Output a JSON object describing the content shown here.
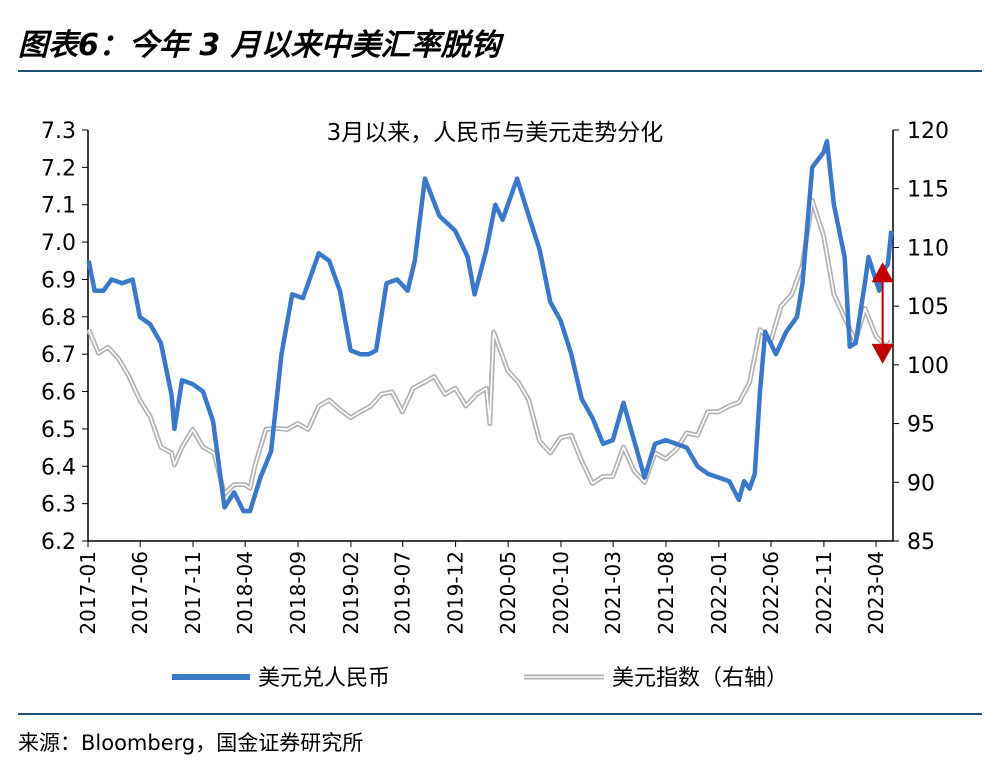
{
  "figure": {
    "title": "图表6：今年 3 月以来中美汇率脱钩",
    "source": "来源：Bloomberg，国金证券研究所"
  },
  "chart_data": {
    "type": "line",
    "title": "3月以来，人民币与美元走势分化",
    "x_tick_labels": [
      "2017-01",
      "2017-06",
      "2017-11",
      "2018-04",
      "2018-09",
      "2019-02",
      "2019-07",
      "2019-12",
      "2020-05",
      "2020-10",
      "2021-03",
      "2021-08",
      "2022-01",
      "2022-06",
      "2022-11",
      "2023-04"
    ],
    "y_left": {
      "range": [
        6.2,
        7.3
      ],
      "ticks": [
        "6.2",
        "6.3",
        "6.4",
        "6.5",
        "6.6",
        "6.7",
        "6.8",
        "6.9",
        "7.0",
        "7.1",
        "7.2",
        "7.3"
      ]
    },
    "y_right": {
      "range": [
        85,
        120
      ],
      "ticks": [
        "85",
        "90",
        "95",
        "100",
        "105",
        "110",
        "115",
        "120"
      ]
    },
    "series": [
      {
        "name": "美元兑人民币",
        "axis": "left",
        "color": "#3a78c9",
        "points": [
          [
            "2017-01-03",
            6.95
          ],
          [
            "2017-01-20",
            6.87
          ],
          [
            "2017-02-15",
            6.87
          ],
          [
            "2017-03-10",
            6.9
          ],
          [
            "2017-04-10",
            6.89
          ],
          [
            "2017-05-10",
            6.9
          ],
          [
            "2017-05-31",
            6.8
          ],
          [
            "2017-06-30",
            6.78
          ],
          [
            "2017-07-31",
            6.73
          ],
          [
            "2017-08-31",
            6.59
          ],
          [
            "2017-09-08",
            6.5
          ],
          [
            "2017-09-30",
            6.63
          ],
          [
            "2017-10-31",
            6.62
          ],
          [
            "2017-11-30",
            6.6
          ],
          [
            "2017-12-29",
            6.52
          ],
          [
            "2018-01-31",
            6.29
          ],
          [
            "2018-02-28",
            6.33
          ],
          [
            "2018-03-27",
            6.28
          ],
          [
            "2018-04-15",
            6.28
          ],
          [
            "2018-05-15",
            6.37
          ],
          [
            "2018-06-15",
            6.44
          ],
          [
            "2018-07-15",
            6.7
          ],
          [
            "2018-08-15",
            6.86
          ],
          [
            "2018-09-15",
            6.85
          ],
          [
            "2018-10-31",
            6.97
          ],
          [
            "2018-11-30",
            6.95
          ],
          [
            "2018-12-31",
            6.87
          ],
          [
            "2019-01-31",
            6.71
          ],
          [
            "2019-02-28",
            6.7
          ],
          [
            "2019-03-25",
            6.7
          ],
          [
            "2019-04-15",
            6.71
          ],
          [
            "2019-05-15",
            6.89
          ],
          [
            "2019-06-15",
            6.9
          ],
          [
            "2019-07-15",
            6.87
          ],
          [
            "2019-08-05",
            6.95
          ],
          [
            "2019-09-03",
            7.17
          ],
          [
            "2019-10-15",
            7.07
          ],
          [
            "2019-11-30",
            7.03
          ],
          [
            "2020-01-05",
            6.96
          ],
          [
            "2020-01-25",
            6.86
          ],
          [
            "2020-02-28",
            6.98
          ],
          [
            "2020-03-25",
            7.1
          ],
          [
            "2020-04-15",
            7.06
          ],
          [
            "2020-05-27",
            7.17
          ],
          [
            "2020-06-30",
            7.07
          ],
          [
            "2020-07-31",
            6.98
          ],
          [
            "2020-08-31",
            6.84
          ],
          [
            "2020-09-30",
            6.79
          ],
          [
            "2020-10-31",
            6.7
          ],
          [
            "2020-11-30",
            6.58
          ],
          [
            "2020-12-31",
            6.53
          ],
          [
            "2021-01-31",
            6.46
          ],
          [
            "2021-02-28",
            6.47
          ],
          [
            "2021-03-31",
            6.57
          ],
          [
            "2021-04-15",
            6.52
          ],
          [
            "2021-05-31",
            6.37
          ],
          [
            "2021-06-30",
            6.46
          ],
          [
            "2021-07-31",
            6.47
          ],
          [
            "2021-08-31",
            6.46
          ],
          [
            "2021-09-30",
            6.45
          ],
          [
            "2021-10-31",
            6.4
          ],
          [
            "2021-11-30",
            6.38
          ],
          [
            "2021-12-31",
            6.37
          ],
          [
            "2022-01-31",
            6.36
          ],
          [
            "2022-02-28",
            6.31
          ],
          [
            "2022-03-15",
            6.36
          ],
          [
            "2022-03-31",
            6.34
          ],
          [
            "2022-04-15",
            6.38
          ],
          [
            "2022-04-30",
            6.6
          ],
          [
            "2022-05-15",
            6.76
          ],
          [
            "2022-06-15",
            6.7
          ],
          [
            "2022-07-15",
            6.76
          ],
          [
            "2022-08-15",
            6.8
          ],
          [
            "2022-08-31",
            6.89
          ],
          [
            "2022-09-28",
            7.2
          ],
          [
            "2022-10-31",
            7.24
          ],
          [
            "2022-11-10",
            7.27
          ],
          [
            "2022-11-30",
            7.1
          ],
          [
            "2022-12-31",
            6.96
          ],
          [
            "2023-01-15",
            6.72
          ],
          [
            "2023-02-01",
            6.73
          ],
          [
            "2023-03-01",
            6.9
          ],
          [
            "2023-03-10",
            6.96
          ],
          [
            "2023-04-10",
            6.87
          ],
          [
            "2023-04-20",
            6.92
          ],
          [
            "2023-05-05",
            6.94
          ],
          [
            "2023-05-15",
            7.03
          ]
        ]
      },
      {
        "name": "美元指数（右轴）",
        "axis": "right",
        "color": "#b3b3b3",
        "points": [
          [
            "2017-01-03",
            103.0
          ],
          [
            "2017-01-31",
            101.0
          ],
          [
            "2017-02-28",
            101.5
          ],
          [
            "2017-03-31",
            100.5
          ],
          [
            "2017-04-30",
            99.0
          ],
          [
            "2017-05-31",
            97.0
          ],
          [
            "2017-06-30",
            95.6
          ],
          [
            "2017-07-31",
            93.0
          ],
          [
            "2017-08-31",
            92.5
          ],
          [
            "2017-09-08",
            91.5
          ],
          [
            "2017-09-30",
            93.0
          ],
          [
            "2017-10-31",
            94.5
          ],
          [
            "2017-11-30",
            93.0
          ],
          [
            "2017-12-31",
            92.5
          ],
          [
            "2018-01-31",
            89.0
          ],
          [
            "2018-02-28",
            89.8
          ],
          [
            "2018-03-31",
            89.8
          ],
          [
            "2018-04-15",
            89.5
          ],
          [
            "2018-04-30",
            91.5
          ],
          [
            "2018-05-31",
            94.5
          ],
          [
            "2018-06-30",
            94.6
          ],
          [
            "2018-07-31",
            94.5
          ],
          [
            "2018-08-31",
            95.0
          ],
          [
            "2018-09-30",
            94.5
          ],
          [
            "2018-10-31",
            96.5
          ],
          [
            "2018-11-30",
            97.0
          ],
          [
            "2018-12-31",
            96.2
          ],
          [
            "2019-01-31",
            95.5
          ],
          [
            "2019-02-28",
            96.0
          ],
          [
            "2019-03-31",
            96.5
          ],
          [
            "2019-04-30",
            97.5
          ],
          [
            "2019-05-31",
            97.7
          ],
          [
            "2019-06-30",
            96.0
          ],
          [
            "2019-07-31",
            98.0
          ],
          [
            "2019-08-31",
            98.5
          ],
          [
            "2019-09-30",
            99.0
          ],
          [
            "2019-10-31",
            97.5
          ],
          [
            "2019-11-30",
            98.0
          ],
          [
            "2019-12-31",
            96.5
          ],
          [
            "2020-01-31",
            97.5
          ],
          [
            "2020-02-28",
            98.0
          ],
          [
            "2020-03-09",
            95.0
          ],
          [
            "2020-03-20",
            102.8
          ],
          [
            "2020-04-30",
            99.5
          ],
          [
            "2020-05-31",
            98.5
          ],
          [
            "2020-06-30",
            97.0
          ],
          [
            "2020-07-31",
            93.5
          ],
          [
            "2020-08-31",
            92.5
          ],
          [
            "2020-09-30",
            93.8
          ],
          [
            "2020-10-31",
            94.0
          ],
          [
            "2020-11-30",
            91.8
          ],
          [
            "2020-12-31",
            89.9
          ],
          [
            "2021-01-31",
            90.5
          ],
          [
            "2021-02-28",
            90.5
          ],
          [
            "2021-03-31",
            93.0
          ],
          [
            "2021-04-30",
            91.0
          ],
          [
            "2021-05-31",
            90.0
          ],
          [
            "2021-06-30",
            92.5
          ],
          [
            "2021-07-31",
            92.0
          ],
          [
            "2021-08-31",
            92.8
          ],
          [
            "2021-09-30",
            94.2
          ],
          [
            "2021-10-31",
            94.0
          ],
          [
            "2021-11-30",
            96.0
          ],
          [
            "2021-12-31",
            96.0
          ],
          [
            "2022-01-31",
            96.5
          ],
          [
            "2022-02-28",
            96.8
          ],
          [
            "2022-03-31",
            98.5
          ],
          [
            "2022-04-30",
            103.0
          ],
          [
            "2022-05-31",
            102.0
          ],
          [
            "2022-06-30",
            105.0
          ],
          [
            "2022-07-31",
            106.0
          ],
          [
            "2022-08-31",
            108.5
          ],
          [
            "2022-09-28",
            114.0
          ],
          [
            "2022-10-31",
            111.0
          ],
          [
            "2022-11-30",
            106.0
          ],
          [
            "2022-12-31",
            104.0
          ],
          [
            "2023-01-31",
            102.0
          ],
          [
            "2023-02-28",
            104.8
          ],
          [
            "2023-03-31",
            102.5
          ],
          [
            "2023-04-30",
            101.5
          ],
          [
            "2023-05-15",
            102.0
          ]
        ]
      }
    ],
    "legend": {
      "placement": "bottom"
    },
    "annotation": {
      "type": "double-arrow",
      "color": "#c00000",
      "near_date": "2023-04"
    },
    "grid": false
  }
}
